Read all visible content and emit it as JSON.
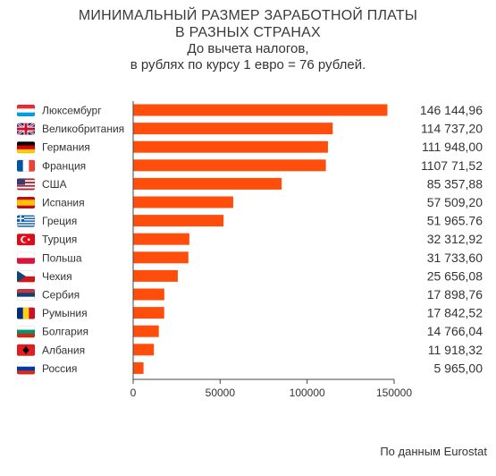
{
  "title_line1": "МИНИМАЛЬНЫЙ РАЗМЕР ЗАРАБОТНОЙ ПЛАТЫ",
  "title_line2": "В РАЗНЫХ СТРАНАХ",
  "subtitle_line1": "До вычета налогов,",
  "subtitle_line2": "в рублях по курсу 1 евро = 76 рублей.",
  "source": "По данным Eurostat",
  "colors": {
    "bar": "#ff4e0b",
    "axis": "#444444",
    "text": "#333333"
  },
  "chart_data": {
    "type": "bar",
    "orientation": "horizontal",
    "categories": [
      "Люксембург",
      "Великобритания",
      "Германия",
      "Франция",
      "США",
      "Испания",
      "Греция",
      "Турция",
      "Польша",
      "Чехия",
      "Сербия",
      "Румыния",
      "Болгария",
      "Албания",
      "Россия"
    ],
    "flag_icons": [
      "flag-luxembourg-icon",
      "flag-uk-icon",
      "flag-germany-icon",
      "flag-france-icon",
      "flag-usa-icon",
      "flag-spain-icon",
      "flag-greece-icon",
      "flag-turkey-icon",
      "flag-poland-icon",
      "flag-czechia-icon",
      "flag-serbia-icon",
      "flag-romania-icon",
      "flag-bulgaria-icon",
      "flag-albania-icon",
      "flag-russia-icon"
    ],
    "values": [
      146144.96,
      114737.2,
      111948.0,
      110771.52,
      85357.88,
      57509.2,
      51965.76,
      32312.92,
      31733.6,
      25656.08,
      17898.76,
      17842.52,
      14766.04,
      11918.32,
      5965.0
    ],
    "value_labels": [
      "146 144,96",
      "114 737,20",
      "111 948,00",
      "1107 71,52",
      "85 357,88",
      "57 509,20",
      "51 965.76",
      "32 312,92",
      "31 733,60",
      "25 656,08",
      "17 898,76",
      "17 842,52",
      "14 766,04",
      "11 918,32",
      "5 965,00"
    ],
    "xticks": [
      "0",
      "50000",
      "100000",
      "150000"
    ],
    "xlim": [
      0,
      150000
    ],
    "grid": false
  }
}
